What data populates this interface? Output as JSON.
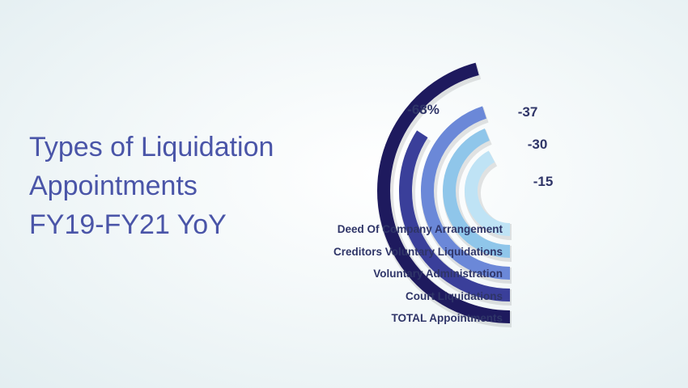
{
  "title_lines": [
    "Types of Liquidation",
    "Appointments",
    "FY19-FY21 YoY"
  ],
  "chart_data": {
    "type": "radial-bar",
    "series": [
      {
        "name": "TOTAL Appointments",
        "label": "",
        "color": "#1e1a5e"
      },
      {
        "name": "Court Liquidations",
        "label": "-68%",
        "color": "#3a3f9a"
      },
      {
        "name": "Voluntary Administration",
        "label": "-37",
        "color": "#6b88d8"
      },
      {
        "name": "Creditors Voluntary Liquidations",
        "label": "-30",
        "color": "#8fc6ea"
      },
      {
        "name": "Deed Of Company Arrangement",
        "label": "-15",
        "color": "#bfe3f5"
      }
    ]
  }
}
